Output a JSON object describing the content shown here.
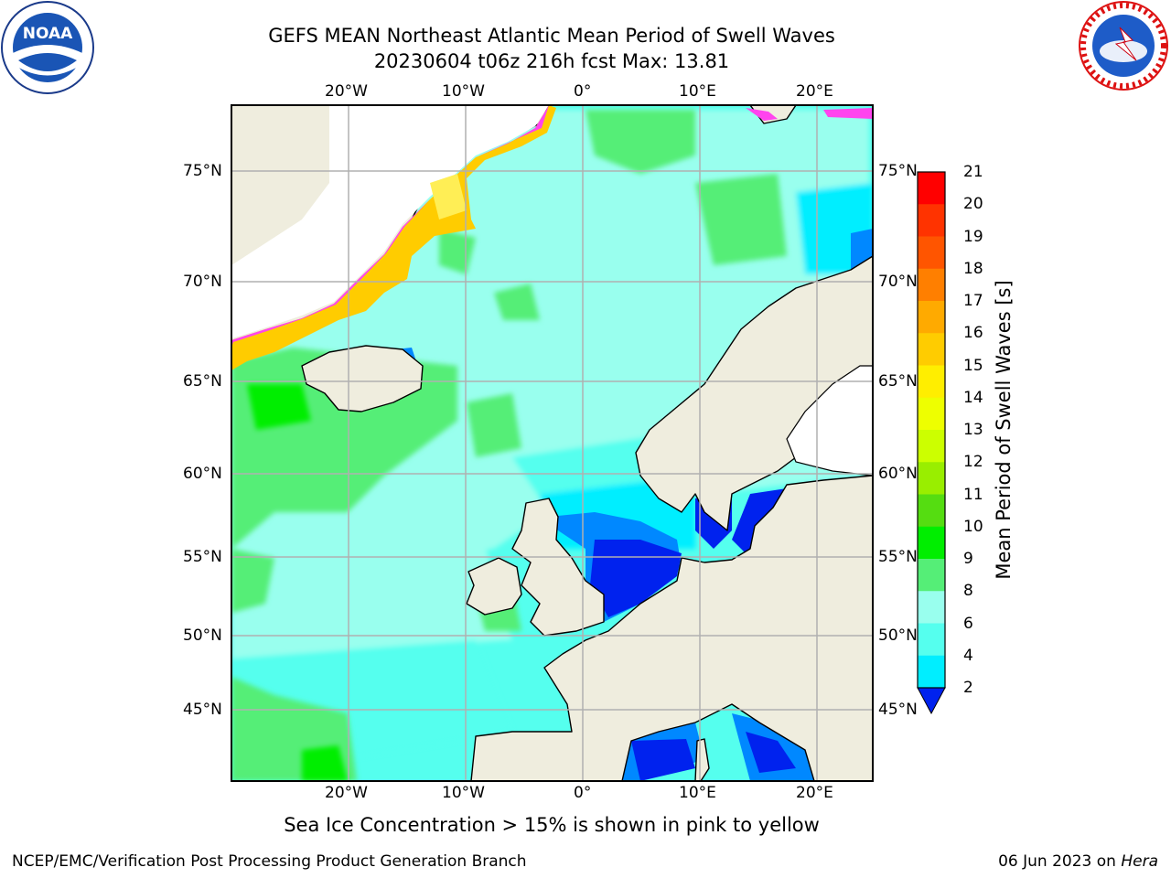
{
  "title": {
    "line1": "GEFS MEAN Northeast Atlantic Mean Period of Swell Waves",
    "line2": "20230604 t06z 216h fcst   Max: 13.81"
  },
  "logos": {
    "left": {
      "icon": "noaa-logo",
      "text": "NOAA"
    },
    "right": {
      "icon": "national-weather-service-logo"
    }
  },
  "map": {
    "lon_labels": [
      "20°W",
      "10°W",
      "0°",
      "10°E",
      "20°E"
    ],
    "lat_labels": [
      "75°N",
      "70°N",
      "65°N",
      "60°N",
      "55°N",
      "50°N",
      "45°N"
    ],
    "colors": {
      "land": "#efedde",
      "ice_white": "#ffffff",
      "grid": "#b0b0b0"
    }
  },
  "colorbar": {
    "title": "Mean Period of Swell Waves [s]",
    "ticks": [
      "21",
      "20",
      "19",
      "18",
      "17",
      "16",
      "15",
      "14",
      "13",
      "12",
      "11",
      "10",
      "9",
      "8",
      "6",
      "4",
      "2"
    ],
    "colors": [
      "#ff0000",
      "#ff3300",
      "#ff5500",
      "#ff7f00",
      "#ffaa00",
      "#ffcc00",
      "#ffee00",
      "#eeff00",
      "#ccff00",
      "#99ee00",
      "#55dd11",
      "#00ee00",
      "#55ee77",
      "#99ffee",
      "#55ffee",
      "#00eeff",
      "#0088ff",
      "#0022ee"
    ]
  },
  "note": "Sea Ice Concentration > 15% is shown in pink to yellow",
  "footer": {
    "left": "NCEP/EMC/Verification Post Processing Product Generation Branch",
    "right_date": "06 Jun 2023 on ",
    "right_host": "Hera"
  }
}
